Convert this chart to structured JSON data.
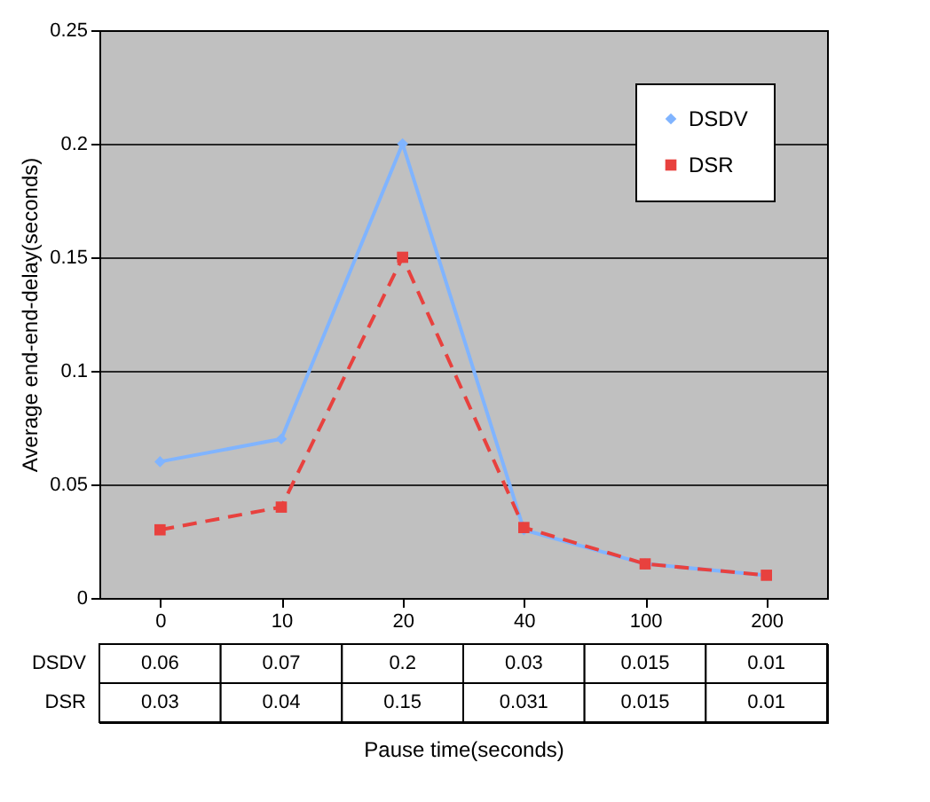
{
  "chart_data": {
    "type": "line",
    "ylabel": "Average end-end-delay(seconds)",
    "xlabel": "Pause time(seconds)",
    "categories": [
      "0",
      "10",
      "20",
      "40",
      "100",
      "200"
    ],
    "series": [
      {
        "name": "DSDV",
        "color": "#80b4ff",
        "marker": "diamond",
        "line_style": "solid",
        "values": [
          0.06,
          0.07,
          0.2,
          0.03,
          0.015,
          0.01
        ]
      },
      {
        "name": "DSR",
        "color": "#e8413e",
        "marker": "square",
        "line_style": "dashed",
        "values": [
          0.03,
          0.04,
          0.15,
          0.031,
          0.015,
          0.01
        ]
      }
    ],
    "ylim": [
      0,
      0.25
    ],
    "yticks": [
      0,
      0.05,
      0.1,
      0.15,
      0.2,
      0.25
    ],
    "grid": "y",
    "legend": "top right",
    "data_labels": true
  }
}
